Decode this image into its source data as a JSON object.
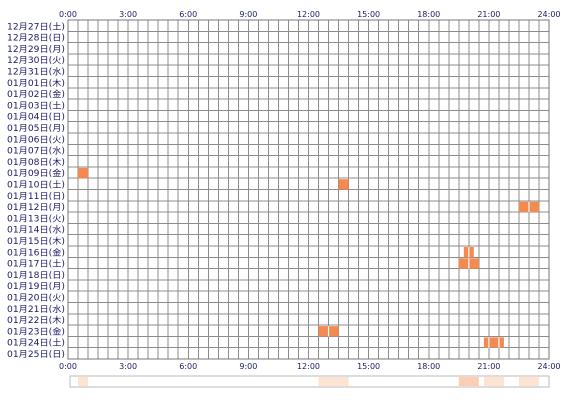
{
  "chart_data": {
    "type": "heatmap",
    "title": "",
    "x_ticks": [
      "0:00",
      "3:00",
      "6:00",
      "9:00",
      "12:00",
      "15:00",
      "18:00",
      "21:00",
      "24:00"
    ],
    "x_range_hours": [
      0,
      24
    ],
    "slot_minutes": 30,
    "grid": true,
    "rows": [
      "12月27日(土)",
      "12月28日(日)",
      "12月29日(月)",
      "12月30日(火)",
      "12月31日(水)",
      "01月01日(木)",
      "01月02日(金)",
      "01月03日(土)",
      "01月04日(日)",
      "01月05日(月)",
      "01月06日(火)",
      "01月07日(水)",
      "01月08日(木)",
      "01月09日(金)",
      "01月10日(土)",
      "01月11日(日)",
      "01月12日(月)",
      "01月13日(火)",
      "01月14日(水)",
      "01月15日(木)",
      "01月16日(金)",
      "01月17日(土)",
      "01月18日(日)",
      "01月19日(月)",
      "01月20日(火)",
      "01月21日(水)",
      "01月22日(木)",
      "01月23日(金)",
      "01月24日(土)",
      "01月25日(日)"
    ],
    "events": [
      {
        "row": 13,
        "start": 0.5,
        "end": 1.0
      },
      {
        "row": 14,
        "start": 13.5,
        "end": 14.0
      },
      {
        "row": 16,
        "start": 22.5,
        "end": 23.5
      },
      {
        "row": 20,
        "start": 19.75,
        "end": 20.25
      },
      {
        "row": 21,
        "start": 19.5,
        "end": 20.5
      },
      {
        "row": 27,
        "start": 12.5,
        "end": 13.5
      },
      {
        "row": 28,
        "start": 20.75,
        "end": 21.75
      }
    ],
    "summary_strip": [
      {
        "start": 0.5,
        "end": 1.0,
        "level": 1
      },
      {
        "start": 12.5,
        "end": 14.0,
        "level": 1
      },
      {
        "start": 19.5,
        "end": 20.5,
        "level": 2
      },
      {
        "start": 20.75,
        "end": 21.75,
        "level": 1
      },
      {
        "start": 22.5,
        "end": 23.5,
        "level": 1
      }
    ]
  },
  "colors": {
    "event": "#f58a50",
    "event_divider": "#ffffff",
    "grid": "#8c8c8c",
    "grid_frame": "#777777",
    "tick_text": "#1a1a66",
    "row_text": "#1a1a66",
    "strip_border": "#bbbbbb",
    "strip_fill": "#fde3d2",
    "strip_fill_strong": "#fccfb4"
  }
}
